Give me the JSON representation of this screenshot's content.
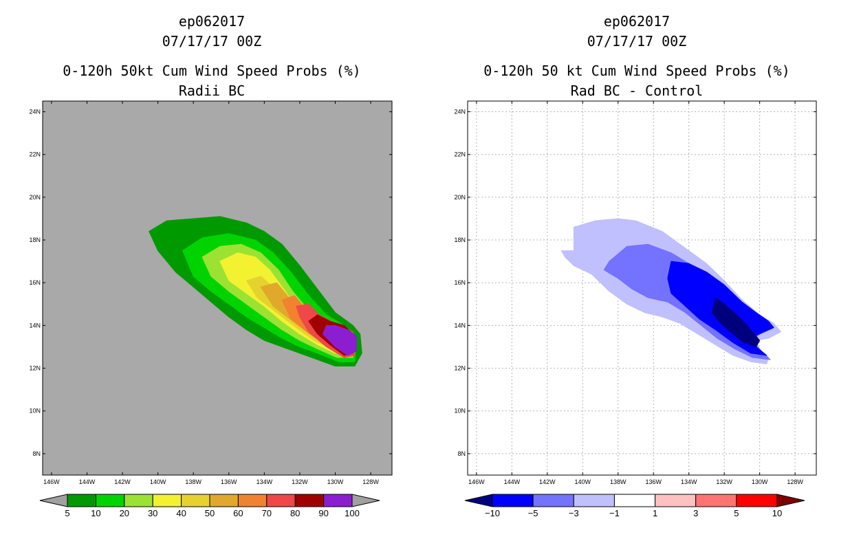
{
  "chart_data": [
    {
      "type": "heatmap",
      "storm_id": "ep062017",
      "date_time": "07/17/17 00Z",
      "title": "0-120h 50kt Cum Wind Speed Probs (%)",
      "subtitle": "Radii BC",
      "x_ticks": [
        "146W",
        "144W",
        "142W",
        "140W",
        "138W",
        "136W",
        "134W",
        "132W",
        "130W",
        "128W"
      ],
      "y_ticks": [
        "8N",
        "10N",
        "12N",
        "14N",
        "16N",
        "18N",
        "20N",
        "22N",
        "24N"
      ],
      "xlim": [
        -146.5,
        -126.8
      ],
      "ylim": [
        7.0,
        24.5
      ],
      "background_color": "#a9a9a9",
      "colorbar_labels": [
        "5",
        "10",
        "20",
        "30",
        "40",
        "50",
        "60",
        "70",
        "80",
        "90",
        "100"
      ],
      "colorbar_colors": [
        "#009a00",
        "#00d400",
        "#9be233",
        "#f2f230",
        "#e6d22e",
        "#e1a92c",
        "#f08230",
        "#f04848",
        "#a00000",
        "#8c1ed2"
      ],
      "colorbar_end_colors": [
        "#a0a0a0",
        "#a0a0a0"
      ],
      "contours": [
        {
          "level": 5,
          "color": "#009a00",
          "points": [
            [
              -140.5,
              18.4
            ],
            [
              -139.5,
              18.9
            ],
            [
              -138,
              19.0
            ],
            [
              -136.5,
              19.1
            ],
            [
              -135,
              18.8
            ],
            [
              -134,
              18.4
            ],
            [
              -133,
              17.8
            ],
            [
              -132,
              16.8
            ],
            [
              -131,
              15.7
            ],
            [
              -130,
              14.6
            ],
            [
              -129,
              14.0
            ],
            [
              -128.6,
              13.6
            ],
            [
              -128.5,
              12.7
            ],
            [
              -128.9,
              12.1
            ],
            [
              -130,
              12.1
            ],
            [
              -131,
              12.4
            ],
            [
              -132,
              12.7
            ],
            [
              -133,
              13.0
            ],
            [
              -134,
              13.3
            ],
            [
              -135,
              13.8
            ],
            [
              -136,
              14.4
            ],
            [
              -137,
              15.1
            ],
            [
              -138,
              15.8
            ],
            [
              -139,
              16.5
            ],
            [
              -140,
              17.5
            ]
          ]
        },
        {
          "level": 10,
          "color": "#00d400",
          "points": [
            [
              -138.6,
              17.5
            ],
            [
              -137.5,
              18.1
            ],
            [
              -136,
              18.3
            ],
            [
              -134.5,
              18.0
            ],
            [
              -133.5,
              17.4
            ],
            [
              -132.5,
              16.5
            ],
            [
              -131.5,
              15.4
            ],
            [
              -130.5,
              14.5
            ],
            [
              -129.5,
              14.0
            ],
            [
              -128.8,
              13.4
            ],
            [
              -128.9,
              12.3
            ],
            [
              -129.8,
              12.3
            ],
            [
              -131,
              12.7
            ],
            [
              -132,
              13.0
            ],
            [
              -133,
              13.4
            ],
            [
              -134,
              13.9
            ],
            [
              -135,
              14.4
            ],
            [
              -136,
              15.0
            ],
            [
              -137,
              15.6
            ],
            [
              -138,
              16.3
            ]
          ]
        },
        {
          "level": 20,
          "color": "#9be233",
          "points": [
            [
              -137.5,
              17.2
            ],
            [
              -136.5,
              17.7
            ],
            [
              -135.3,
              17.8
            ],
            [
              -134.2,
              17.4
            ],
            [
              -133.2,
              16.6
            ],
            [
              -132.4,
              15.6
            ],
            [
              -131.5,
              14.7
            ],
            [
              -130.5,
              14.1
            ],
            [
              -129.2,
              13.8
            ],
            [
              -129.0,
              12.5
            ],
            [
              -129.9,
              12.5
            ],
            [
              -131,
              12.9
            ],
            [
              -132,
              13.3
            ],
            [
              -133,
              13.8
            ],
            [
              -134,
              14.4
            ],
            [
              -135,
              15.0
            ],
            [
              -136,
              15.6
            ],
            [
              -137,
              16.3
            ]
          ]
        },
        {
          "level": 30,
          "color": "#f2f230",
          "points": [
            [
              -136.5,
              17.0
            ],
            [
              -135.5,
              17.4
            ],
            [
              -134.5,
              17.2
            ],
            [
              -133.7,
              16.6
            ],
            [
              -133.0,
              15.8
            ],
            [
              -132.3,
              15.0
            ],
            [
              -131.3,
              14.3
            ],
            [
              -129.2,
              13.6
            ],
            [
              -129.1,
              12.7
            ],
            [
              -130,
              12.7
            ],
            [
              -131,
              13.1
            ],
            [
              -132,
              13.6
            ],
            [
              -133,
              14.2
            ],
            [
              -134,
              14.9
            ],
            [
              -135,
              15.5
            ],
            [
              -136,
              16.1
            ]
          ]
        },
        {
          "level": 40,
          "color": "#e6d22e",
          "points": [
            [
              -135.0,
              16.1
            ],
            [
              -134.2,
              16.3
            ],
            [
              -133.5,
              15.8
            ],
            [
              -132.9,
              15.2
            ],
            [
              -132.2,
              14.6
            ],
            [
              -131.0,
              14.1
            ],
            [
              -129.2,
              13.6
            ],
            [
              -129.1,
              12.8
            ],
            [
              -130.2,
              12.9
            ],
            [
              -131.2,
              13.3
            ],
            [
              -132.2,
              13.9
            ],
            [
              -133.3,
              14.6
            ],
            [
              -134.4,
              15.3
            ]
          ]
        },
        {
          "level": 50,
          "color": "#e1a92c",
          "points": [
            [
              -134.2,
              15.8
            ],
            [
              -133.3,
              16.0
            ],
            [
              -132.6,
              15.3
            ],
            [
              -131.9,
              14.7
            ],
            [
              -130.8,
              14.2
            ],
            [
              -129.2,
              13.6
            ],
            [
              -129.1,
              12.9
            ],
            [
              -130.3,
              13.0
            ],
            [
              -131.3,
              13.5
            ],
            [
              -132.4,
              14.2
            ],
            [
              -133.5,
              14.9
            ]
          ]
        },
        {
          "level": 60,
          "color": "#f08230",
          "points": [
            [
              -133.0,
              15.2
            ],
            [
              -132.3,
              15.4
            ],
            [
              -131.7,
              14.8
            ],
            [
              -130.7,
              14.3
            ],
            [
              -129.2,
              13.6
            ],
            [
              -129.1,
              13.0
            ],
            [
              -130.4,
              13.1
            ],
            [
              -131.4,
              13.6
            ],
            [
              -132.5,
              14.3
            ]
          ]
        },
        {
          "level": 70,
          "color": "#f04848",
          "points": [
            [
              -132.2,
              14.9
            ],
            [
              -131.5,
              15.0
            ],
            [
              -130.9,
              14.5
            ],
            [
              -130.0,
              14.1
            ],
            [
              -129.0,
              13.7
            ],
            [
              -128.9,
              12.6
            ],
            [
              -129.5,
              12.5
            ],
            [
              -130.5,
              13.0
            ],
            [
              -131.5,
              13.7
            ],
            [
              -132.0,
              14.4
            ]
          ]
        },
        {
          "level": 80,
          "color": "#a00000",
          "points": [
            [
              -131.5,
              14.2
            ],
            [
              -131.0,
              14.5
            ],
            [
              -130.3,
              14.2
            ],
            [
              -129.5,
              14.0
            ],
            [
              -129.0,
              13.6
            ],
            [
              -129.0,
              12.7
            ],
            [
              -129.5,
              12.6
            ],
            [
              -130.3,
              13.1
            ],
            [
              -131.0,
              13.6
            ]
          ]
        },
        {
          "level": 90,
          "color": "#8c1ed2",
          "points": [
            [
              -130.5,
              14.0
            ],
            [
              -130.0,
              14.0
            ],
            [
              -129.3,
              13.8
            ],
            [
              -128.8,
              13.5
            ],
            [
              -128.8,
              12.8
            ],
            [
              -129.3,
              12.6
            ],
            [
              -130.0,
              13.0
            ],
            [
              -130.7,
              13.6
            ]
          ]
        }
      ]
    },
    {
      "type": "heatmap",
      "storm_id": "ep062017",
      "date_time": "07/17/17 00Z",
      "title": "0-120h 50 kt Cum Wind Speed Probs (%)",
      "subtitle": "Rad BC - Control",
      "x_ticks": [
        "146W",
        "144W",
        "142W",
        "140W",
        "138W",
        "136W",
        "134W",
        "132W",
        "130W",
        "128W"
      ],
      "y_ticks": [
        "8N",
        "10N",
        "12N",
        "14N",
        "16N",
        "18N",
        "20N",
        "22N",
        "24N"
      ],
      "xlim": [
        -146.5,
        -126.8
      ],
      "ylim": [
        7.0,
        24.5
      ],
      "background_color": "#ffffff",
      "grid": true,
      "colorbar_labels": [
        "-10",
        "-5",
        "-3",
        "-1",
        "1",
        "3",
        "5",
        "10"
      ],
      "colorbar_colors": [
        "#0000ff",
        "#7373ff",
        "#c0c0ff",
        "#ffffff",
        "#ffc0c0",
        "#ff7373",
        "#ff0000"
      ],
      "colorbar_end_colors": [
        "#00007f",
        "#7f0000"
      ],
      "contours": [
        {
          "level": -1,
          "color": "#c0c0ff",
          "points": [
            [
              -140.5,
              18.6
            ],
            [
              -139.3,
              18.9
            ],
            [
              -138.0,
              19.0
            ],
            [
              -137.0,
              18.9
            ],
            [
              -135.5,
              18.4
            ],
            [
              -134.0,
              17.5
            ],
            [
              -133.0,
              16.9
            ],
            [
              -132.0,
              16.1
            ],
            [
              -131.0,
              15.2
            ],
            [
              -130.0,
              14.5
            ],
            [
              -129.2,
              14.1
            ],
            [
              -128.8,
              13.7
            ],
            [
              -129.5,
              13.4
            ],
            [
              -130.2,
              13.3
            ],
            [
              -130.0,
              12.9
            ],
            [
              -129.5,
              12.5
            ],
            [
              -129.6,
              12.2
            ],
            [
              -130.5,
              12.3
            ],
            [
              -131.5,
              12.6
            ],
            [
              -132.5,
              13.1
            ],
            [
              -133.5,
              13.6
            ],
            [
              -134.5,
              14.1
            ],
            [
              -135.5,
              14.4
            ],
            [
              -136.5,
              14.6
            ],
            [
              -137.5,
              15.0
            ],
            [
              -138.5,
              15.6
            ],
            [
              -139.5,
              16.4
            ],
            [
              -140.5,
              16.8
            ],
            [
              -141.0,
              17.2
            ],
            [
              -141.2,
              17.5
            ],
            [
              -140.5,
              17.5
            ]
          ]
        },
        {
          "level": -3,
          "color": "#7373ff",
          "points": [
            [
              -138.5,
              17.0
            ],
            [
              -137.5,
              17.7
            ],
            [
              -136.3,
              17.8
            ],
            [
              -135.0,
              17.4
            ],
            [
              -133.8,
              16.8
            ],
            [
              -132.7,
              16.0
            ],
            [
              -131.5,
              15.2
            ],
            [
              -130.5,
              14.6
            ],
            [
              -129.5,
              14.2
            ],
            [
              -129.3,
              13.9
            ],
            [
              -130.0,
              13.6
            ],
            [
              -130.4,
              13.3
            ],
            [
              -129.9,
              12.8
            ],
            [
              -129.4,
              12.4
            ],
            [
              -130.4,
              12.5
            ],
            [
              -131.4,
              12.9
            ],
            [
              -132.4,
              13.4
            ],
            [
              -133.3,
              14.0
            ],
            [
              -134.2,
              14.6
            ],
            [
              -135.2,
              15.1
            ],
            [
              -136.3,
              15.3
            ],
            [
              -137.2,
              15.7
            ],
            [
              -138.0,
              16.2
            ],
            [
              -138.8,
              16.6
            ]
          ]
        },
        {
          "level": -5,
          "color": "#0000ff",
          "points": [
            [
              -135.0,
              17.0
            ],
            [
              -134.0,
              16.9
            ],
            [
              -133.0,
              16.5
            ],
            [
              -132.0,
              15.9
            ],
            [
              -131.0,
              15.1
            ],
            [
              -130.2,
              14.6
            ],
            [
              -129.5,
              14.2
            ],
            [
              -129.2,
              13.9
            ],
            [
              -130.0,
              13.6
            ],
            [
              -130.6,
              13.4
            ],
            [
              -130.2,
              13.0
            ],
            [
              -129.6,
              12.6
            ],
            [
              -130.5,
              12.7
            ],
            [
              -131.5,
              13.2
            ],
            [
              -132.5,
              13.8
            ],
            [
              -133.4,
              14.3
            ],
            [
              -134.2,
              14.9
            ],
            [
              -135.0,
              15.5
            ],
            [
              -135.2,
              16.2
            ]
          ]
        },
        {
          "level": -10,
          "color": "#00007f",
          "points": [
            [
              -132.5,
              15.3
            ],
            [
              -132.0,
              15.0
            ],
            [
              -131.3,
              14.5
            ],
            [
              -130.7,
              14.0
            ],
            [
              -130.3,
              13.6
            ],
            [
              -130.0,
              13.3
            ],
            [
              -130.2,
              13.0
            ],
            [
              -130.9,
              13.2
            ],
            [
              -131.5,
              13.6
            ],
            [
              -132.2,
              14.1
            ],
            [
              -132.7,
              14.6
            ]
          ]
        }
      ]
    }
  ]
}
